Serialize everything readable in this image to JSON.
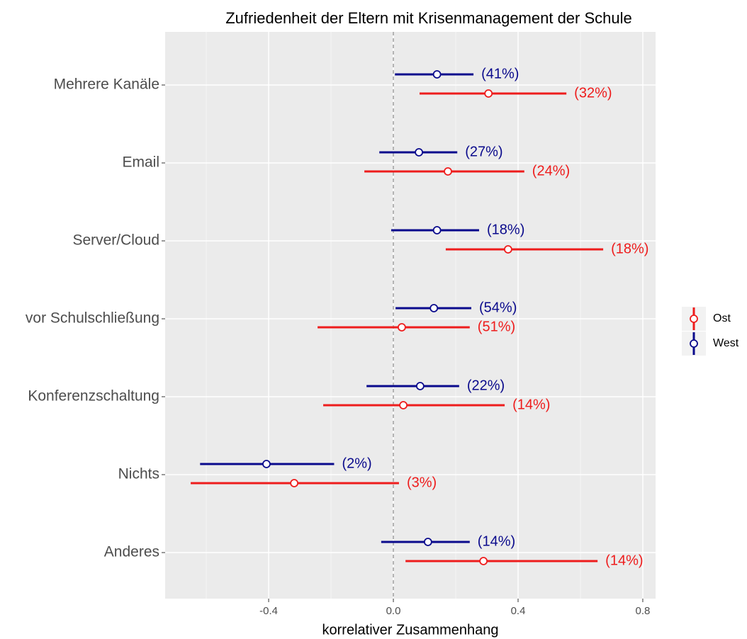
{
  "chart_data": {
    "type": "interval",
    "title": "Zufriedenheit der Eltern mit Krisenmanagement der Schule",
    "x_label": "korrelativer Zusammenhang",
    "categories": [
      "Mehrere Kanäle",
      "Email",
      "Server/Cloud",
      "vor Schulschließung",
      "Konferenzschaltung",
      "Nichts",
      "Anderes"
    ],
    "series": [
      {
        "name": "Ost",
        "color": "#ee1c1c",
        "values": [
          0.305,
          0.175,
          0.368,
          0.027,
          0.032,
          -0.318,
          0.289
        ],
        "lower": [
          0.084,
          -0.093,
          0.168,
          -0.243,
          -0.225,
          -0.65,
          0.039
        ],
        "upper": [
          0.555,
          0.42,
          0.673,
          0.245,
          0.357,
          0.018,
          0.655
        ],
        "annotations": [
          "(32%)",
          "(24%)",
          "(18%)",
          "(51%)",
          "(14%)",
          "(3%)",
          "(14%)"
        ]
      },
      {
        "name": "West",
        "color": "#0a0a8c",
        "values": [
          0.14,
          0.082,
          0.14,
          0.13,
          0.086,
          -0.407,
          0.111
        ],
        "lower": [
          0.005,
          -0.045,
          -0.007,
          0.007,
          -0.086,
          -0.62,
          -0.039
        ],
        "upper": [
          0.257,
          0.205,
          0.275,
          0.25,
          0.211,
          -0.19,
          0.245
        ],
        "annotations": [
          "(41%)",
          "(27%)",
          "(18%)",
          "(54%)",
          "(22%)",
          "(2%)",
          "(14%)"
        ]
      }
    ],
    "xlim": [
      -0.732,
      0.841
    ],
    "xticks": [
      -0.4,
      {
        "value": 0,
        "label": "0.0"
      },
      0.4,
      0.8
    ],
    "minor_xticks": [
      -0.6,
      -0.2,
      0.2,
      0.6
    ],
    "reference_line": 0,
    "grid": true,
    "legend_position": "right"
  }
}
